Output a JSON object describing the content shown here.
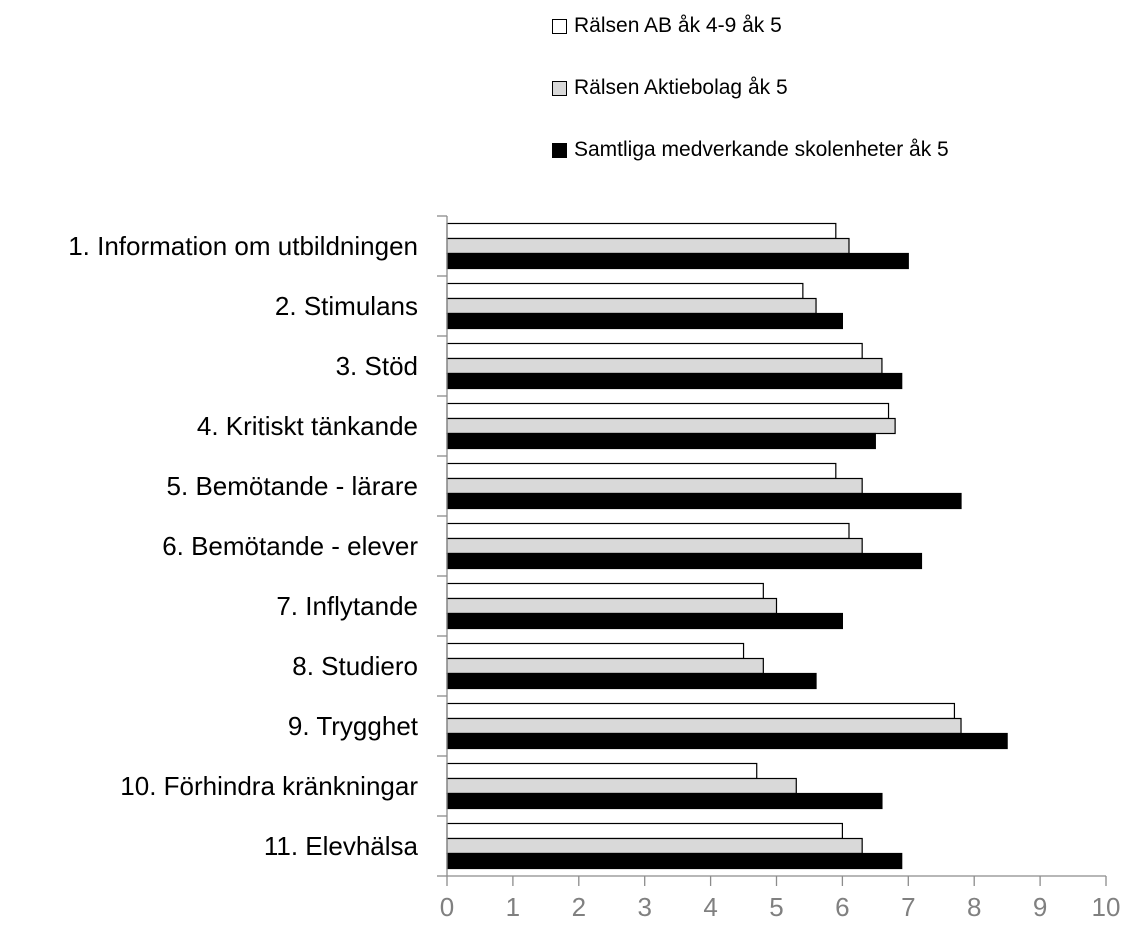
{
  "chart_data": {
    "type": "bar",
    "orientation": "horizontal",
    "categories": [
      "1. Information om utbildningen",
      "2. Stimulans",
      "3. Stöd",
      "4. Kritiskt tänkande",
      "5. Bemötande - lärare",
      "6. Bemötande - elever",
      "7. Inflytande",
      "8. Studiero",
      "9. Trygghet",
      "10. Förhindra kränkningar",
      "11. Elevhälsa"
    ],
    "series": [
      {
        "name": "Rälsen AB åk 4-9 åk 5",
        "color": "#ffffff",
        "values": [
          5.9,
          5.4,
          6.3,
          6.7,
          5.9,
          6.1,
          4.8,
          4.5,
          7.7,
          4.7,
          6.0
        ]
      },
      {
        "name": "Rälsen Aktiebolag åk 5",
        "color": "#d9d9d9",
        "values": [
          6.1,
          5.6,
          6.6,
          6.8,
          6.3,
          6.3,
          5.0,
          4.8,
          7.8,
          5.3,
          6.3
        ]
      },
      {
        "name": "Samtliga medverkande skolenheter åk 5",
        "color": "#000000",
        "values": [
          7.0,
          6.0,
          6.9,
          6.5,
          7.8,
          7.2,
          6.0,
          5.6,
          8.5,
          6.6,
          6.9
        ]
      }
    ],
    "xlim": [
      0,
      10
    ],
    "xticks": [
      "0",
      "1",
      "2",
      "3",
      "4",
      "5",
      "6",
      "7",
      "8",
      "9",
      "10"
    ],
    "grid": false,
    "legend_position": "top-right"
  }
}
